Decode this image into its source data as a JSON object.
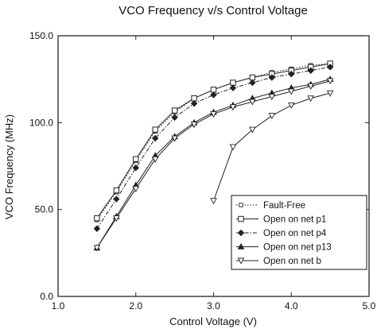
{
  "chart_data": {
    "type": "line",
    "title": "VCO Frequency v/s Control Voltage",
    "xlabel": "Control Voltage (V)",
    "ylabel": "VCO Frequency (MHz)",
    "xlim": [
      1.0,
      5.0
    ],
    "ylim": [
      0.0,
      150.0
    ],
    "x_ticks": [
      1.0,
      2.0,
      3.0,
      4.0,
      5.0
    ],
    "x_tick_labels": [
      "1.0",
      "2.0",
      "3.0",
      "4.0",
      "5.0"
    ],
    "y_ticks": [
      0.0,
      50.0,
      100.0,
      150.0
    ],
    "y_tick_labels": [
      "0.0",
      "50.0",
      "100.0",
      "150.0"
    ],
    "grid": false,
    "legend_position": "bottom-right",
    "series": [
      {
        "name": "Fault-Free",
        "marker": "small-square",
        "dash": "dotted",
        "x": [
          1.5,
          1.75,
          2.0,
          2.25,
          2.5,
          2.75,
          3.0,
          3.25,
          3.5,
          3.75,
          4.0,
          4.25,
          4.5
        ],
        "y": [
          44,
          60,
          78,
          95,
          106,
          114,
          119,
          123,
          126,
          129,
          131,
          133,
          134
        ]
      },
      {
        "name": "Open on net p1",
        "marker": "open-square",
        "dash": "solid",
        "x": [
          1.5,
          1.75,
          2.0,
          2.25,
          2.5,
          2.75,
          3.0,
          3.25,
          3.5,
          3.75,
          4.0,
          4.25,
          4.5
        ],
        "y": [
          45,
          61,
          79,
          96,
          107,
          114,
          119,
          123,
          126,
          128,
          130,
          132,
          134
        ]
      },
      {
        "name": "Open on net p4",
        "marker": "filled-diamond",
        "dash": "dashdot",
        "x": [
          1.5,
          1.75,
          2.0,
          2.25,
          2.5,
          2.75,
          3.0,
          3.25,
          3.5,
          3.75,
          4.0,
          4.25,
          4.5
        ],
        "y": [
          39,
          56,
          74,
          91,
          103,
          111,
          116,
          120,
          123,
          126,
          128,
          130,
          132
        ]
      },
      {
        "name": "Open on net p13",
        "marker": "filled-triangle",
        "dash": "solid",
        "x": [
          1.5,
          1.75,
          2.0,
          2.25,
          2.5,
          2.75,
          3.0,
          3.25,
          3.5,
          3.75,
          4.0,
          4.25,
          4.5
        ],
        "y": [
          28,
          46,
          64,
          81,
          92,
          100,
          106,
          110,
          114,
          117,
          120,
          122,
          125
        ]
      },
      {
        "name": "Open on net b",
        "marker": "open-triangle-down",
        "dash": "solid",
        "x": [
          1.5,
          1.75,
          2.0,
          2.25,
          2.5,
          2.75,
          3.0,
          3.25,
          3.5,
          3.75,
          4.0,
          4.25,
          4.5
        ],
        "y": [
          28,
          45,
          62,
          79,
          91,
          99,
          105,
          109,
          112,
          115,
          118,
          121,
          124
        ]
      },
      {
        "name": "",
        "marker": "open-triangle-down",
        "dash": "solid",
        "x": [
          3.0,
          3.25,
          3.5,
          3.75,
          4.0,
          4.25,
          4.5
        ],
        "y": [
          55,
          86,
          96,
          104,
          110,
          114,
          117
        ]
      }
    ],
    "colors": {
      "line": "#222222",
      "background": "#ffffff"
    }
  }
}
